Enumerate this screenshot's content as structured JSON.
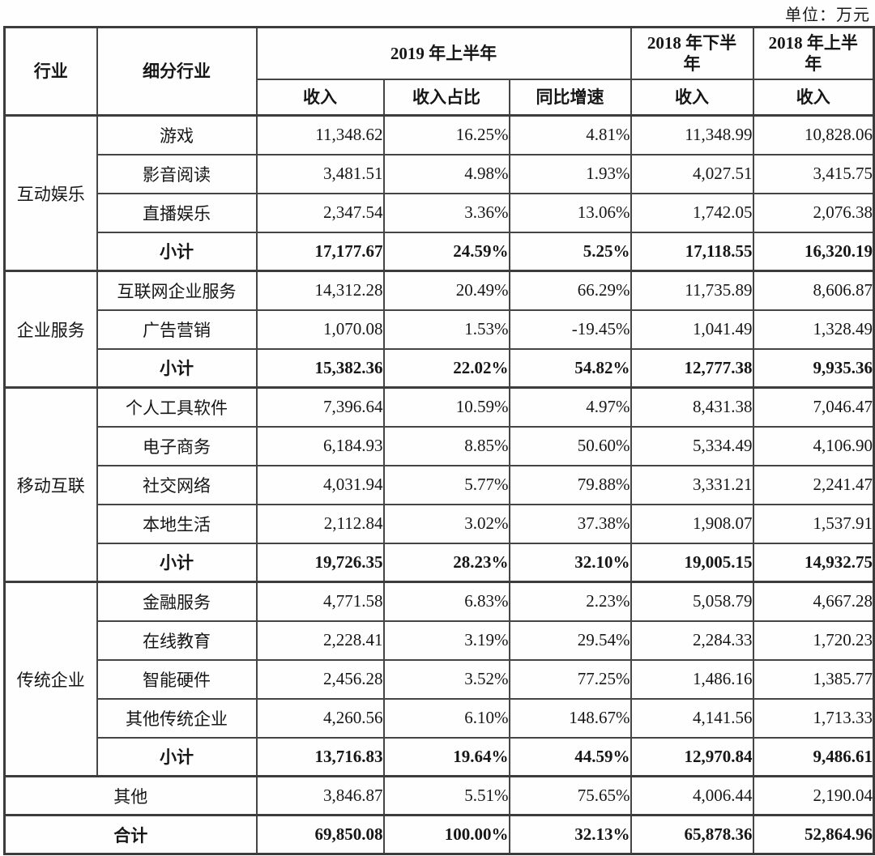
{
  "unit_label": "单位：万元",
  "colors": {
    "background": "#fefefe",
    "border": "#454545",
    "outer_border": "#3c3c3c",
    "text": "#161616"
  },
  "table": {
    "headers": {
      "industry": "行业",
      "sub_industry": "细分行业",
      "h1_2019": "2019 年上半年",
      "h2_2018": "2018 年下半年",
      "h1_2018": "2018 年上半年",
      "revenue": "收入",
      "revenue_share": "收入占比",
      "yoy_growth": "同比增速",
      "revenue_h2_2018": "收入",
      "revenue_h1_2018": "收入"
    },
    "sections": [
      {
        "industry": "互动娱乐",
        "rows": [
          {
            "label": "游戏",
            "bold": false,
            "cells": [
              "11,348.62",
              "16.25%",
              "4.81%",
              "11,348.99",
              "10,828.06"
            ]
          },
          {
            "label": "影音阅读",
            "bold": false,
            "cells": [
              "3,481.51",
              "4.98%",
              "1.93%",
              "4,027.51",
              "3,415.75"
            ]
          },
          {
            "label": "直播娱乐",
            "bold": false,
            "cells": [
              "2,347.54",
              "3.36%",
              "13.06%",
              "1,742.05",
              "2,076.38"
            ]
          },
          {
            "label": "小计",
            "bold": true,
            "cells": [
              "17,177.67",
              "24.59%",
              "5.25%",
              "17,118.55",
              "16,320.19"
            ]
          }
        ]
      },
      {
        "industry": "企业服务",
        "rows": [
          {
            "label": "互联网企业服务",
            "bold": false,
            "cells": [
              "14,312.28",
              "20.49%",
              "66.29%",
              "11,735.89",
              "8,606.87"
            ]
          },
          {
            "label": "广告营销",
            "bold": false,
            "cells": [
              "1,070.08",
              "1.53%",
              "-19.45%",
              "1,041.49",
              "1,328.49"
            ]
          },
          {
            "label": "小计",
            "bold": true,
            "cells": [
              "15,382.36",
              "22.02%",
              "54.82%",
              "12,777.38",
              "9,935.36"
            ]
          }
        ]
      },
      {
        "industry": "移动互联",
        "rows": [
          {
            "label": "个人工具软件",
            "bold": false,
            "cells": [
              "7,396.64",
              "10.59%",
              "4.97%",
              "8,431.38",
              "7,046.47"
            ]
          },
          {
            "label": "电子商务",
            "bold": false,
            "cells": [
              "6,184.93",
              "8.85%",
              "50.60%",
              "5,334.49",
              "4,106.90"
            ]
          },
          {
            "label": "社交网络",
            "bold": false,
            "cells": [
              "4,031.94",
              "5.77%",
              "79.88%",
              "3,331.21",
              "2,241.47"
            ]
          },
          {
            "label": "本地生活",
            "bold": false,
            "cells": [
              "2,112.84",
              "3.02%",
              "37.38%",
              "1,908.07",
              "1,537.91"
            ]
          },
          {
            "label": "小计",
            "bold": true,
            "cells": [
              "19,726.35",
              "28.23%",
              "32.10%",
              "19,005.15",
              "14,932.75"
            ]
          }
        ]
      },
      {
        "industry": "传统企业",
        "rows": [
          {
            "label": "金融服务",
            "bold": false,
            "cells": [
              "4,771.58",
              "6.83%",
              "2.23%",
              "5,058.79",
              "4,667.28"
            ]
          },
          {
            "label": "在线教育",
            "bold": false,
            "cells": [
              "2,228.41",
              "3.19%",
              "29.54%",
              "2,284.33",
              "1,720.23"
            ]
          },
          {
            "label": "智能硬件",
            "bold": false,
            "cells": [
              "2,456.28",
              "3.52%",
              "77.25%",
              "1,486.16",
              "1,385.77"
            ]
          },
          {
            "label": "其他传统企业",
            "bold": false,
            "cells": [
              "4,260.56",
              "6.10%",
              "148.67%",
              "4,141.56",
              "1,713.33"
            ]
          },
          {
            "label": "小计",
            "bold": true,
            "cells": [
              "13,716.83",
              "19.64%",
              "44.59%",
              "12,970.84",
              "9,486.61"
            ]
          }
        ]
      }
    ],
    "footer_rows": [
      {
        "label": "其他",
        "bold": false,
        "cells": [
          "3,846.87",
          "5.51%",
          "75.65%",
          "4,006.44",
          "2,190.04"
        ]
      },
      {
        "label": "合计",
        "bold": true,
        "cells": [
          "69,850.08",
          "100.00%",
          "32.13%",
          "65,878.36",
          "52,864.96"
        ]
      }
    ]
  }
}
